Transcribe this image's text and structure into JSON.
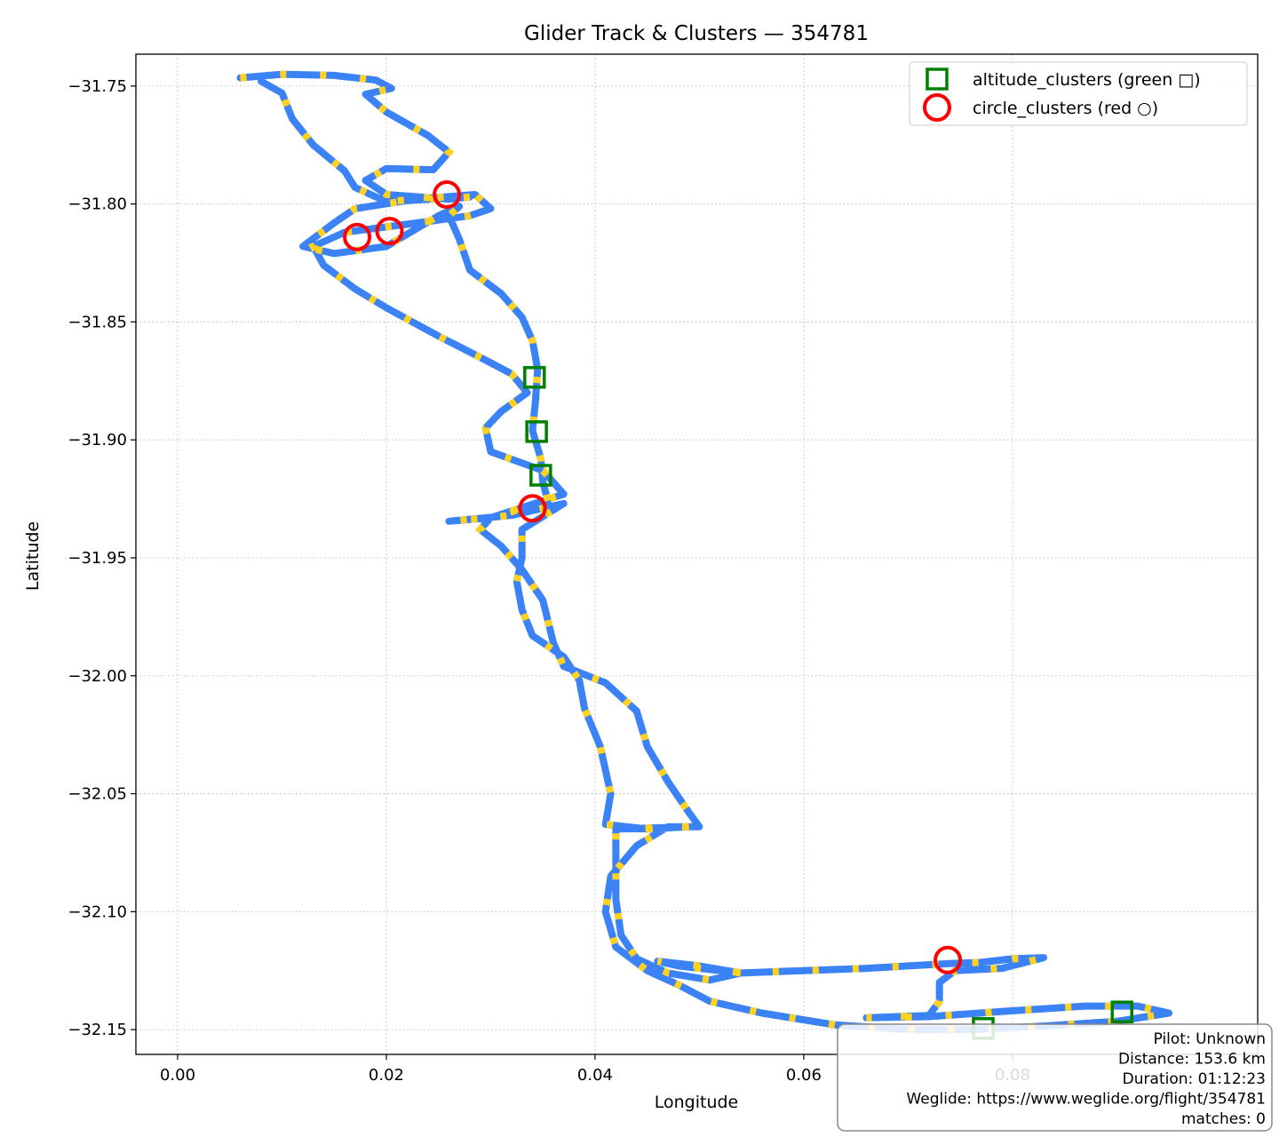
{
  "chart_data": {
    "type": "scatter",
    "title": "Glider Track & Clusters — 354781",
    "xlabel": "Longitude",
    "ylabel": "Latitude",
    "xlim": [
      -0.004,
      0.1035
    ],
    "ylim": [
      -32.1605,
      -31.7365
    ],
    "x_ticks": [
      0.0,
      0.02,
      0.04,
      0.06,
      0.08
    ],
    "x_tick_labels": [
      "0.00",
      "0.02",
      "0.04",
      "0.06",
      "0.08"
    ],
    "y_ticks": [
      -31.75,
      -31.8,
      -31.85,
      -31.9,
      -31.95,
      -32.0,
      -32.05,
      -32.1,
      -32.15
    ],
    "y_tick_labels": [
      "−31.75",
      "−31.80",
      "−31.85",
      "−31.90",
      "−31.95",
      "−32.00",
      "−32.05",
      "−32.10",
      "−32.15"
    ],
    "grid": true,
    "legend_position": "top-right",
    "colors": {
      "track_primary": "#3b82f6",
      "track_secondary": "#ffd21f",
      "altitude_clusters": "#008000",
      "circle_clusters": "#ff0000"
    },
    "series": [
      {
        "name": "altitude_clusters (green □)",
        "marker": "square",
        "points": [
          [
            0.0342,
            -31.8735
          ],
          [
            0.0344,
            -31.8965
          ],
          [
            0.0348,
            -31.915
          ],
          [
            0.0905,
            -32.1425
          ],
          [
            0.0772,
            -32.1495
          ]
        ]
      },
      {
        "name": "circle_clusters (red ○)",
        "marker": "circle",
        "points": [
          [
            0.0258,
            -31.796
          ],
          [
            0.0172,
            -31.814
          ],
          [
            0.0203,
            -31.8115
          ],
          [
            0.034,
            -31.929
          ],
          [
            0.0738,
            -32.1205
          ]
        ]
      }
    ],
    "track": [
      [
        0.006,
        -31.7465
      ],
      [
        0.01,
        -31.745
      ],
      [
        0.015,
        -31.7455
      ],
      [
        0.019,
        -31.7475
      ],
      [
        0.0205,
        -31.751
      ],
      [
        0.018,
        -31.7535
      ],
      [
        0.02,
        -31.761
      ],
      [
        0.024,
        -31.771
      ],
      [
        0.026,
        -31.778
      ],
      [
        0.0245,
        -31.7855
      ],
      [
        0.02,
        -31.785
      ],
      [
        0.018,
        -31.79
      ],
      [
        0.02,
        -31.796
      ],
      [
        0.026,
        -31.798
      ],
      [
        0.028,
        -31.797
      ],
      [
        0.022,
        -31.7985
      ],
      [
        0.017,
        -31.802
      ],
      [
        0.015,
        -31.808
      ],
      [
        0.012,
        -31.818
      ],
      [
        0.015,
        -31.821
      ],
      [
        0.02,
        -31.818
      ],
      [
        0.025,
        -31.805
      ],
      [
        0.027,
        -31.801
      ],
      [
        0.026,
        -31.805
      ],
      [
        0.027,
        -31.815
      ],
      [
        0.028,
        -31.828
      ],
      [
        0.031,
        -31.838
      ],
      [
        0.033,
        -31.848
      ],
      [
        0.034,
        -31.858
      ],
      [
        0.0345,
        -31.87
      ],
      [
        0.0343,
        -31.883
      ],
      [
        0.034,
        -31.896
      ],
      [
        0.0348,
        -31.908
      ],
      [
        0.035,
        -31.918
      ],
      [
        0.0355,
        -31.926
      ],
      [
        0.03,
        -31.933
      ],
      [
        0.026,
        -31.9345
      ],
      [
        0.032,
        -31.932
      ],
      [
        0.037,
        -31.927
      ],
      [
        0.033,
        -31.938
      ],
      [
        0.033,
        -31.95
      ],
      [
        0.0325,
        -31.96
      ],
      [
        0.033,
        -31.972
      ],
      [
        0.034,
        -31.983
      ],
      [
        0.037,
        -31.992
      ],
      [
        0.0385,
        -32.002
      ],
      [
        0.039,
        -32.014
      ],
      [
        0.0405,
        -32.03
      ],
      [
        0.041,
        -32.04
      ],
      [
        0.0415,
        -32.05
      ],
      [
        0.041,
        -32.063
      ],
      [
        0.045,
        -32.065
      ],
      [
        0.049,
        -32.064
      ],
      [
        0.042,
        -32.065
      ],
      [
        0.042,
        -32.08
      ],
      [
        0.042,
        -32.095
      ],
      [
        0.0425,
        -32.11
      ],
      [
        0.044,
        -32.12
      ],
      [
        0.047,
        -32.126
      ],
      [
        0.051,
        -32.129
      ],
      [
        0.054,
        -32.126
      ],
      [
        0.048,
        -32.123
      ],
      [
        0.046,
        -32.121
      ],
      [
        0.05,
        -32.123
      ],
      [
        0.054,
        -32.126
      ],
      [
        0.06,
        -32.125
      ],
      [
        0.066,
        -32.124
      ],
      [
        0.07,
        -32.123
      ],
      [
        0.074,
        -32.122
      ],
      [
        0.077,
        -32.1215
      ],
      [
        0.08,
        -32.12
      ],
      [
        0.083,
        -32.1195
      ],
      [
        0.079,
        -32.124
      ],
      [
        0.0745,
        -32.125
      ],
      [
        0.073,
        -32.13
      ],
      [
        0.073,
        -32.138
      ],
      [
        0.072,
        -32.144
      ],
      [
        0.066,
        -32.145
      ],
      [
        0.072,
        -32.1445
      ],
      [
        0.08,
        -32.142
      ],
      [
        0.087,
        -32.14
      ],
      [
        0.092,
        -32.14
      ],
      [
        0.095,
        -32.143
      ],
      [
        0.09,
        -32.1465
      ],
      [
        0.083,
        -32.1485
      ],
      [
        0.076,
        -32.15
      ],
      [
        0.07,
        -32.15
      ],
      [
        0.063,
        -32.148
      ],
      [
        0.056,
        -32.143
      ],
      [
        0.051,
        -32.138
      ],
      [
        0.048,
        -32.131
      ],
      [
        0.045,
        -32.125
      ],
      [
        0.042,
        -32.115
      ],
      [
        0.041,
        -32.1
      ],
      [
        0.0415,
        -32.085
      ],
      [
        0.044,
        -32.072
      ],
      [
        0.047,
        -32.064
      ],
      [
        0.05,
        -32.064
      ],
      [
        0.049,
        -32.058
      ],
      [
        0.047,
        -32.045
      ],
      [
        0.045,
        -32.03
      ],
      [
        0.044,
        -32.015
      ],
      [
        0.041,
        -32.003
      ],
      [
        0.037,
        -31.996
      ],
      [
        0.036,
        -31.986
      ],
      [
        0.035,
        -31.968
      ],
      [
        0.033,
        -31.955
      ],
      [
        0.031,
        -31.945
      ],
      [
        0.029,
        -31.938
      ],
      [
        0.03,
        -31.933
      ],
      [
        0.037,
        -31.923
      ],
      [
        0.035,
        -31.913
      ],
      [
        0.03,
        -31.905
      ],
      [
        0.0295,
        -31.895
      ],
      [
        0.031,
        -31.888
      ],
      [
        0.0335,
        -31.88
      ],
      [
        0.032,
        -31.872
      ],
      [
        0.029,
        -31.865
      ],
      [
        0.025,
        -31.856
      ],
      [
        0.02,
        -31.844
      ],
      [
        0.017,
        -31.836
      ],
      [
        0.014,
        -31.826
      ],
      [
        0.013,
        -31.818
      ],
      [
        0.016,
        -31.812
      ],
      [
        0.023,
        -31.808
      ],
      [
        0.028,
        -31.805
      ],
      [
        0.03,
        -31.802
      ],
      [
        0.0285,
        -31.796
      ],
      [
        0.02,
        -31.799
      ],
      [
        0.017,
        -31.793
      ],
      [
        0.016,
        -31.786
      ],
      [
        0.013,
        -31.775
      ],
      [
        0.011,
        -31.764
      ],
      [
        0.01,
        -31.753
      ],
      [
        0.008,
        -31.748
      ]
    ]
  },
  "info_box": {
    "lines": [
      "Pilot: Unknown",
      "Distance: 153.6 km",
      "Duration: 01:12:23",
      "Weglide: https://www.weglide.org/flight/354781",
      "matches: 0"
    ]
  }
}
